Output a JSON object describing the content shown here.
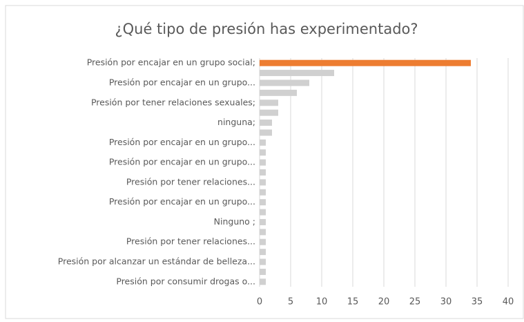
{
  "chart_data": {
    "type": "bar",
    "orientation": "horizontal",
    "title": "¿Qué tipo de presión has experimentado?",
    "categories": [
      "Presión por encajar en un grupo social;",
      null,
      "Presión por encajar en un grupo...",
      null,
      "Presión por tener relaciones sexuales;",
      null,
      "ninguna;",
      null,
      "Presión por encajar en un grupo...",
      null,
      "Presión por encajar en un grupo...",
      null,
      "Presión por tener relaciones...",
      null,
      "Presión por encajar en un grupo...",
      null,
      "Ninguno ;",
      null,
      "Presión por tener relaciones...",
      null,
      "Presión por alcanzar un estándar de belleza...",
      null,
      "Presión por consumir drogas o..."
    ],
    "values": [
      34,
      12,
      8,
      6,
      3,
      3,
      2,
      2,
      1,
      1,
      1,
      1,
      1,
      1,
      1,
      1,
      1,
      1,
      1,
      1,
      1,
      1,
      1
    ],
    "colors": [
      "#ed7d31",
      "#d0d0d0",
      "#d0d0d0",
      "#d0d0d0",
      "#d0d0d0",
      "#d0d0d0",
      "#d0d0d0",
      "#d0d0d0",
      "#d0d0d0",
      "#d0d0d0",
      "#d0d0d0",
      "#d0d0d0",
      "#d0d0d0",
      "#d0d0d0",
      "#d0d0d0",
      "#d0d0d0",
      "#d0d0d0",
      "#d0d0d0",
      "#d0d0d0",
      "#d0d0d0",
      "#d0d0d0",
      "#d0d0d0",
      "#d0d0d0"
    ],
    "xlim": [
      0,
      40
    ],
    "xticks": [
      0,
      5,
      10,
      15,
      20,
      25,
      30,
      35,
      40
    ],
    "grid": true
  }
}
